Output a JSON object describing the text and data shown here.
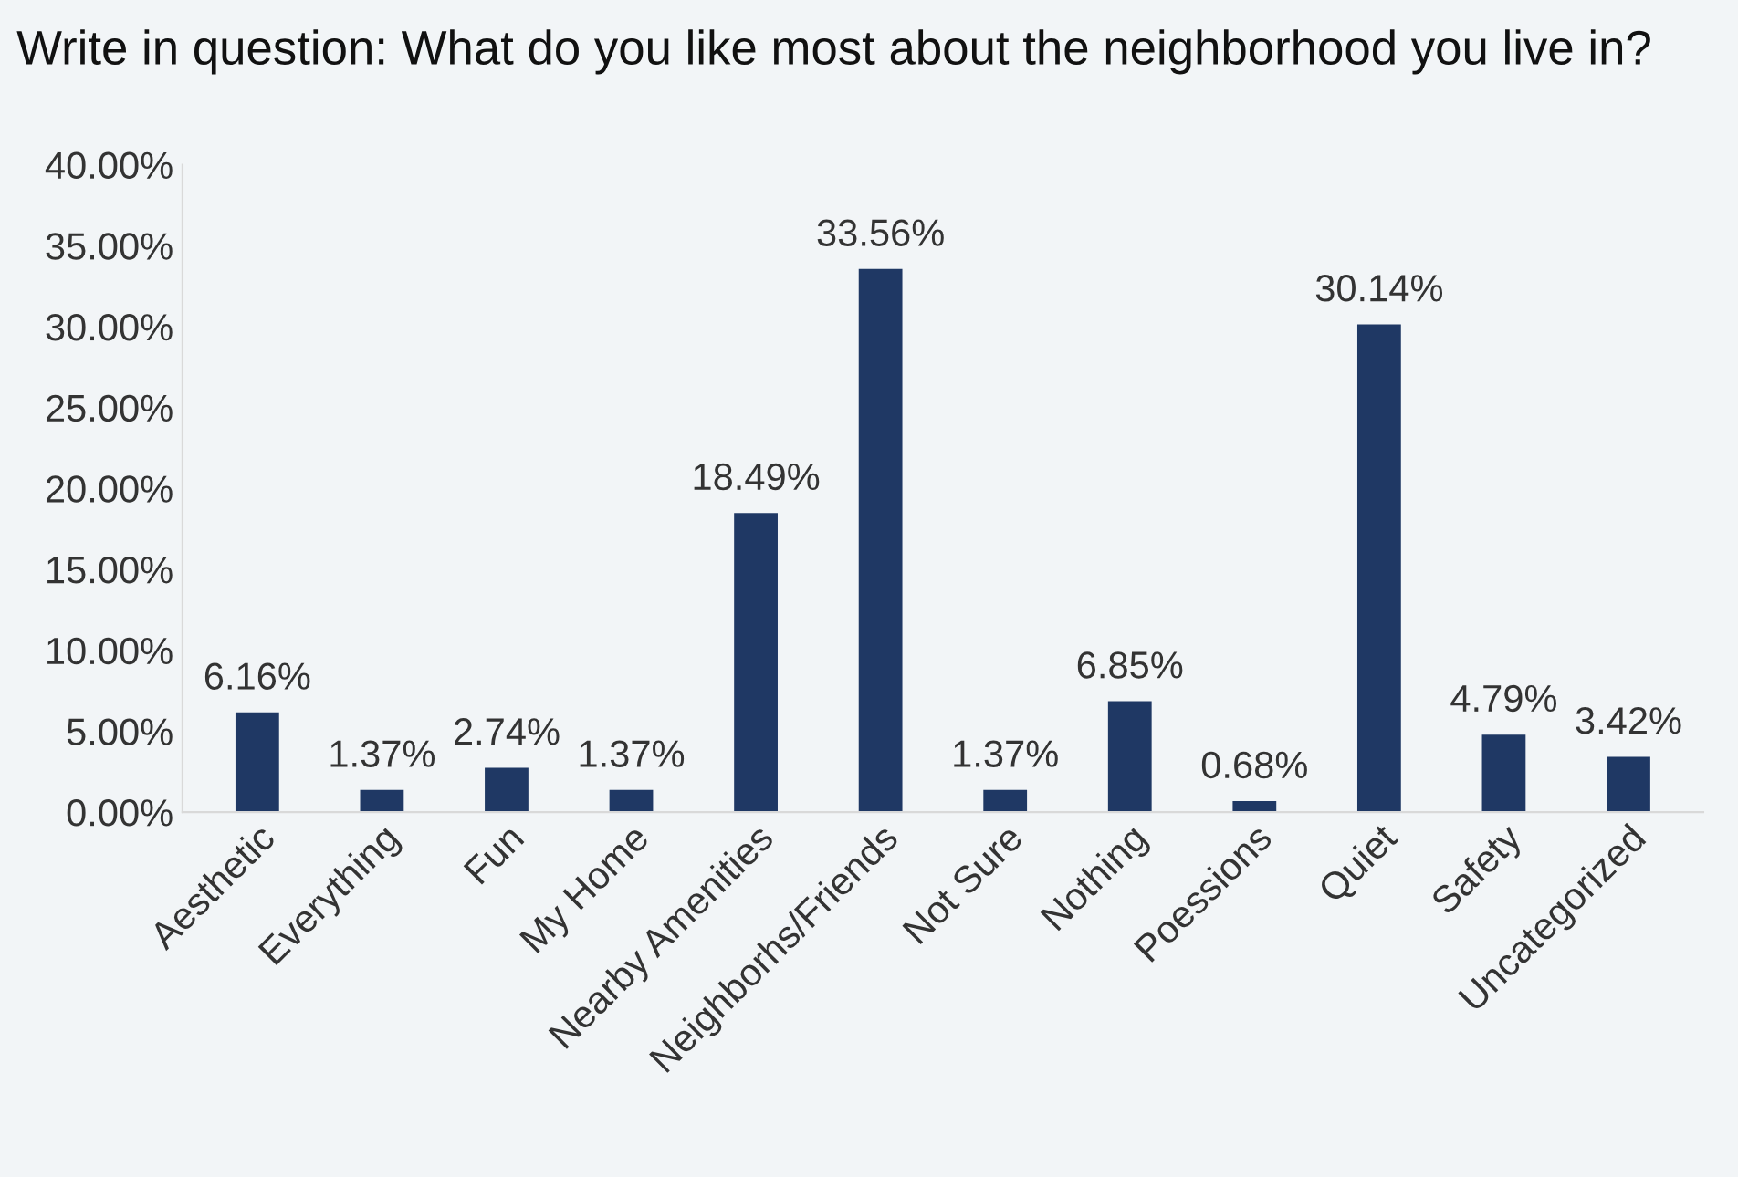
{
  "chart_data": {
    "type": "bar",
    "title": "Write in question: What do you like most about the neighborhood you live in?",
    "categories": [
      "Aesthetic",
      "Everything",
      "Fun",
      "My Home",
      "Nearby Amenities",
      "Neighborhs/Friends",
      "Not Sure",
      "Nothing",
      "Poessions",
      "Quiet",
      "Safety",
      "Uncategorized"
    ],
    "values": [
      6.16,
      1.37,
      2.74,
      1.37,
      18.49,
      33.56,
      1.37,
      6.85,
      0.68,
      30.14,
      4.79,
      3.42
    ],
    "value_labels": [
      "6.16%",
      "1.37%",
      "2.74%",
      "1.37%",
      "18.49%",
      "33.56%",
      "1.37%",
      "6.85%",
      "0.68%",
      "30.14%",
      "4.79%",
      "3.42%"
    ],
    "color": "#1f3864",
    "ylim": [
      0,
      40
    ],
    "yticks": [
      {
        "value": 0,
        "label": "0.00%"
      },
      {
        "value": 5,
        "label": "5.00%"
      },
      {
        "value": 10,
        "label": "10.00%"
      },
      {
        "value": 15,
        "label": "15.00%"
      },
      {
        "value": 20,
        "label": "20.00%"
      },
      {
        "value": 25,
        "label": "25.00%"
      },
      {
        "value": 30,
        "label": "30.00%"
      },
      {
        "value": 35,
        "label": "35.00%"
      },
      {
        "value": 40,
        "label": "40.00%"
      }
    ],
    "grid": false,
    "legend": false
  }
}
